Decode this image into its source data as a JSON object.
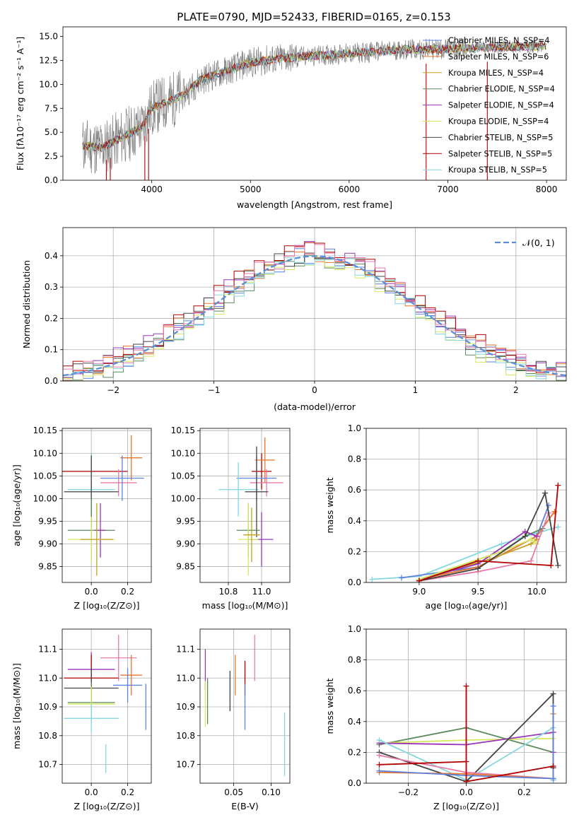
{
  "figure_title": "PLATE=0790, MJD=52433, FIBERID=0165, z=0.153",
  "model_labels": [
    "Chabrier MILES",
    "Salpeter MILES",
    "Kroupa MILES",
    "Chabrier ELODIE",
    "Salpeter ELODIE",
    "Kroupa ELODIE",
    "Chabrier STELIB",
    "Salpeter STELIB",
    "Kroupa STELIB"
  ],
  "chart_data": [
    {
      "id": "spectrum",
      "type": "line",
      "title": "PLATE=0790, MJD=52433, FIBERID=0165, z=0.153",
      "xlabel": "wavelength [Angstrom, rest frame]",
      "ylabel": "Flux [fλ10⁻¹⁷ erg cm⁻² s⁻¹ A⁻¹]",
      "xlim": [
        3100,
        8200
      ],
      "ylim": [
        0,
        16
      ],
      "xticks": [
        "4000",
        "5000",
        "6000",
        "7000",
        "8000"
      ],
      "yticks": [
        "0.0",
        "2.5",
        "5.0",
        "7.5",
        "10.0",
        "12.5",
        "15.0"
      ],
      "legend_position": "right",
      "continuum": {
        "x": [
          3300,
          3500,
          3700,
          3900,
          4000,
          4300,
          4500,
          5000,
          5500,
          6000,
          6500,
          7000,
          7500,
          8000
        ],
        "y": [
          3.6,
          3.4,
          4.5,
          5.5,
          7.5,
          8.8,
          10.5,
          12.3,
          12.9,
          13.2,
          13.6,
          13.7,
          13.9,
          14.0
        ]
      },
      "series": [
        {
          "name": "Chabrier MILES, N_SSP=4",
          "color": "#5b82e0"
        },
        {
          "name": "Salpeter MILES, N_SSP=6",
          "color": "#e8762b"
        },
        {
          "name": "Kroupa MILES, N_SSP=4",
          "color": "#c8a01e"
        },
        {
          "name": "Chabrier ELODIE, N_SSP=4",
          "color": "#5a8a5a"
        },
        {
          "name": "Salpeter ELODIE, N_SSP=4",
          "color": "#9a35b5"
        },
        {
          "name": "Kroupa ELODIE, N_SSP=4",
          "color": "#d8e860"
        },
        {
          "name": "Chabrier STELIB, N_SSP=5",
          "color": "#444444"
        },
        {
          "name": "Salpeter STELIB, N_SSP=5",
          "color": "#b00000"
        },
        {
          "name": "Kroupa STELIB, N_SSP=5",
          "color": "#85d8e0"
        }
      ]
    },
    {
      "id": "residuals",
      "type": "step",
      "xlabel": "(data-model)/error",
      "ylabel": "Normed distribution",
      "xlim": [
        -2.5,
        2.5
      ],
      "ylim": [
        0,
        0.49
      ],
      "xticks": [
        "−2",
        "−1",
        "0",
        "1",
        "2"
      ],
      "yticks": [
        "0.0",
        "0.1",
        "0.2",
        "0.3",
        "0.4"
      ],
      "gaussian_label": "𝒩(0, 1)",
      "gaussian_color": "#5b8fd8",
      "bin_width": 0.1,
      "series": [
        {
          "name": "Chabrier MILES",
          "color": "#5b82e0",
          "offset": 0.0
        },
        {
          "name": "Salpeter MILES",
          "color": "#e8762b",
          "offset": 0.012
        },
        {
          "name": "Chabrier ELODIE",
          "color": "#5a8a5a",
          "offset": -0.01
        },
        {
          "name": "Salpeter ELODIE",
          "color": "#9a35b5",
          "offset": 0.018
        },
        {
          "name": "Kroupa ELODIE",
          "color": "#d8e860",
          "offset": -0.015
        },
        {
          "name": "Chabrier STELIB",
          "color": "#444444",
          "offset": 0.006
        },
        {
          "name": "Salpeter STELIB",
          "color": "#b00000",
          "offset": 0.022
        },
        {
          "name": "Kroupa STELIB",
          "color": "#85d8e0",
          "offset": -0.006
        },
        {
          "name": "Kroupa MILES",
          "color": "#e87aa8",
          "offset": 0.01
        }
      ]
    },
    {
      "id": "age-vs-Z",
      "type": "errorbar",
      "xlabel": "Z [log₁₀(Z/Z⊙)]",
      "ylabel": "age  [log₁₀(age/yr)]",
      "xlim": [
        -0.16,
        0.33
      ],
      "ylim": [
        9.815,
        10.155
      ],
      "xticks": [
        "0.0",
        "0.2"
      ],
      "yticks": [
        "9.85",
        "9.90",
        "9.95",
        "10.00",
        "10.05",
        "10.10",
        "10.15"
      ],
      "points": [
        {
          "x": 0.0,
          "y": 10.06,
          "xerr": 0.2,
          "yerr": 0.04,
          "color": "#b00000"
        },
        {
          "x": 0.22,
          "y": 10.09,
          "xerr": 0.06,
          "yerr": 0.05,
          "color": "#e8762b"
        },
        {
          "x": 0.15,
          "y": 10.035,
          "xerr": 0.1,
          "yerr": 0.03,
          "color": "#e87aa8"
        },
        {
          "x": 0.17,
          "y": 10.045,
          "xerr": 0.12,
          "yerr": 0.05,
          "color": "#5b82e0"
        },
        {
          "x": 0.0,
          "y": 10.02,
          "xerr": 0.13,
          "yerr": 0.08,
          "color": "#85d8e0"
        },
        {
          "x": 0.0,
          "y": 10.015,
          "xerr": 0.15,
          "yerr": 0.08,
          "color": "#444444"
        },
        {
          "x": 0.0,
          "y": 9.93,
          "xerr": 0.13,
          "yerr": 0.07,
          "color": "#5a8a5a"
        },
        {
          "x": 0.05,
          "y": 9.93,
          "xerr": 0.03,
          "yerr": 0.06,
          "color": "#9a35b5"
        },
        {
          "x": 0.0,
          "y": 9.91,
          "xerr": 0.13,
          "yerr": 0.05,
          "color": "#d8e860"
        },
        {
          "x": 0.03,
          "y": 9.91,
          "xerr": 0.09,
          "yerr": 0.08,
          "color": "#c8a01e"
        }
      ]
    },
    {
      "id": "age-vs-mass",
      "type": "errorbar",
      "xlabel": "mass [log₁₀(M/M⊙)]",
      "xlim": [
        10.63,
        11.17
      ],
      "ylim": [
        9.815,
        10.155
      ],
      "xticks": [
        "10.8",
        "11.0"
      ],
      "yticks": [
        "9.85",
        "9.90",
        "9.95",
        "10.00",
        "10.05",
        "10.10",
        "10.15"
      ],
      "points": [
        {
          "x": 11.0,
          "y": 10.06,
          "xerr": 0.06,
          "yerr": 0.04,
          "color": "#b00000"
        },
        {
          "x": 11.02,
          "y": 10.085,
          "xerr": 0.06,
          "yerr": 0.05,
          "color": "#e8762b"
        },
        {
          "x": 11.03,
          "y": 10.035,
          "xerr": 0.1,
          "yerr": 0.03,
          "color": "#e87aa8"
        },
        {
          "x": 10.97,
          "y": 10.045,
          "xerr": 0.12,
          "yerr": 0.05,
          "color": "#5b82e0"
        },
        {
          "x": 10.86,
          "y": 10.02,
          "xerr": 0.12,
          "yerr": 0.06,
          "color": "#85d8e0"
        },
        {
          "x": 10.97,
          "y": 10.015,
          "xerr": 0.07,
          "yerr": 0.1,
          "color": "#444444"
        },
        {
          "x": 10.92,
          "y": 9.93,
          "xerr": 0.07,
          "yerr": 0.06,
          "color": "#5a8a5a"
        },
        {
          "x": 11.0,
          "y": 9.91,
          "xerr": 0.07,
          "yerr": 0.06,
          "color": "#9a35b5"
        },
        {
          "x": 10.92,
          "y": 9.91,
          "xerr": 0.06,
          "yerr": 0.08,
          "color": "#d8e860"
        },
        {
          "x": 10.94,
          "y": 9.92,
          "xerr": 0.05,
          "yerr": 0.06,
          "color": "#c8a01e"
        }
      ]
    },
    {
      "id": "weight-vs-age",
      "type": "line",
      "xlabel": "age  [log₁₀(age/yr)]",
      "ylabel": "mass weight",
      "xlim": [
        8.55,
        10.25
      ],
      "ylim": [
        0,
        1
      ],
      "xticks": [
        "9.0",
        "9.5",
        "10.0"
      ],
      "yticks": [
        "0.0",
        "0.2",
        "0.4",
        "0.6",
        "0.8",
        "1.0"
      ],
      "series": [
        {
          "name": "Kroupa STELIB",
          "color": "#85d8e0",
          "x": [
            8.6,
            9.0,
            9.7,
            10.0,
            10.18
          ],
          "y": [
            0.02,
            0.04,
            0.25,
            0.32,
            0.36
          ]
        },
        {
          "name": "Chabrier MILES",
          "color": "#5b82e0",
          "x": [
            8.85,
            9.5,
            10.0,
            10.1
          ],
          "y": [
            0.03,
            0.1,
            0.3,
            0.5
          ]
        },
        {
          "name": "Salpeter MILES",
          "color": "#e8762b",
          "x": [
            9.0,
            9.5,
            10.0,
            10.15
          ],
          "y": [
            0.02,
            0.1,
            0.3,
            0.46
          ]
        },
        {
          "name": "Kroupa MILES",
          "color": "#c8a01e",
          "x": [
            9.0,
            9.6,
            9.95,
            10.0
          ],
          "y": [
            0.02,
            0.15,
            0.25,
            0.28
          ]
        },
        {
          "name": "Chabrier ELODIE",
          "color": "#5a8a5a",
          "x": [
            9.0,
            9.7,
            9.9,
            10.05
          ],
          "y": [
            0.02,
            0.2,
            0.3,
            0.35
          ]
        },
        {
          "name": "Salpeter ELODIE",
          "color": "#9a35b5",
          "x": [
            9.0,
            9.5,
            9.9,
            10.0
          ],
          "y": [
            0.02,
            0.12,
            0.33,
            0.3
          ]
        },
        {
          "name": "Kroupa ELODIE",
          "color": "#d8e860",
          "x": [
            9.0,
            9.7,
            9.95,
            10.0
          ],
          "y": [
            0.02,
            0.2,
            0.28,
            0.25
          ]
        },
        {
          "name": "Kroupa MILES",
          "color": "#e87aa8",
          "x": [
            9.0,
            9.5,
            9.95,
            10.1
          ],
          "y": [
            0.01,
            0.07,
            0.14,
            0.45
          ]
        },
        {
          "name": "Chabrier STELIB",
          "color": "#444444",
          "x": [
            9.0,
            9.5,
            9.9,
            10.07,
            10.18
          ],
          "y": [
            0.01,
            0.09,
            0.3,
            0.58,
            0.11
          ]
        },
        {
          "name": "Salpeter STELIB",
          "color": "#b00000",
          "x": [
            9.0,
            9.5,
            10.12,
            10.18
          ],
          "y": [
            0.01,
            0.14,
            0.11,
            0.63
          ]
        }
      ]
    },
    {
      "id": "mass-vs-Z",
      "type": "errorbar",
      "xlabel": "Z [log₁₀(Z/Z⊙)]",
      "ylabel": "mass [log₁₀(M/M⊙)]",
      "xlim": [
        -0.16,
        0.33
      ],
      "ylim": [
        10.635,
        11.17
      ],
      "xticks": [
        "0.0",
        "0.2"
      ],
      "yticks": [
        "10.7",
        "10.8",
        "10.9",
        "11.0",
        "11.1"
      ],
      "points": [
        {
          "x": 0.0,
          "y": 11.03,
          "xerr": 0.13,
          "yerr": 0.06,
          "color": "#9a35b5"
        },
        {
          "x": 0.15,
          "y": 11.07,
          "xerr": 0.1,
          "yerr": 0.08,
          "color": "#e87aa8"
        },
        {
          "x": 0.22,
          "y": 11.01,
          "xerr": 0.06,
          "yerr": 0.07,
          "color": "#e8762b"
        },
        {
          "x": 0.2,
          "y": 10.975,
          "xerr": 0.08,
          "yerr": 0.06,
          "color": "#5b82e0"
        },
        {
          "x": 0.0,
          "y": 11.0,
          "xerr": 0.15,
          "yerr": 0.08,
          "color": "#b00000"
        },
        {
          "x": 0.0,
          "y": 10.965,
          "xerr": 0.15,
          "yerr": 0.07,
          "color": "#444444"
        },
        {
          "x": 0.0,
          "y": 10.915,
          "xerr": 0.13,
          "yerr": 0.07,
          "color": "#5a8a5a"
        },
        {
          "x": 0.0,
          "y": 10.91,
          "xerr": 0.13,
          "yerr": 0.06,
          "color": "#d8e860"
        },
        {
          "x": 0.0,
          "y": 10.86,
          "xerr": 0.15,
          "yerr": 0.05,
          "color": "#85d8e0"
        },
        {
          "x": 0.3,
          "y": 10.9,
          "xerr": 0.0,
          "yerr": 0.08,
          "color": "#5b82e0"
        },
        {
          "x": 0.08,
          "y": 10.72,
          "xerr": 0.0,
          "yerr": 0.05,
          "color": "#85d8e0"
        }
      ]
    },
    {
      "id": "mass-vs-ebv",
      "type": "errorbar",
      "xlabel": "E(B-V)",
      "xlim": [
        0.005,
        0.125
      ],
      "ylim": [
        10.635,
        11.17
      ],
      "xticks": [
        "0.05",
        "0.10"
      ],
      "yticks": [
        "10.7",
        "10.8",
        "10.9",
        "11.0",
        "11.1"
      ],
      "points": [
        {
          "x": 0.012,
          "y": 11.03,
          "xerr": 0,
          "yerr": 0.07,
          "color": "#9a35b5"
        },
        {
          "x": 0.012,
          "y": 10.91,
          "xerr": 0,
          "yerr": 0.08,
          "color": "#d8e860"
        },
        {
          "x": 0.015,
          "y": 10.92,
          "xerr": 0,
          "yerr": 0.08,
          "color": "#5a8a5a"
        },
        {
          "x": 0.045,
          "y": 10.955,
          "xerr": 0,
          "yerr": 0.07,
          "color": "#444444"
        },
        {
          "x": 0.052,
          "y": 11.01,
          "xerr": 0,
          "yerr": 0.07,
          "color": "#e8762b"
        },
        {
          "x": 0.065,
          "y": 11.0,
          "xerr": 0,
          "yerr": 0.06,
          "color": "#b00000"
        },
        {
          "x": 0.065,
          "y": 10.9,
          "xerr": 0,
          "yerr": 0.08,
          "color": "#5b82e0"
        },
        {
          "x": 0.078,
          "y": 11.07,
          "xerr": 0,
          "yerr": 0.08,
          "color": "#e87aa8"
        },
        {
          "x": 0.118,
          "y": 10.77,
          "xerr": 0,
          "yerr": 0.11,
          "color": "#85d8e0"
        }
      ]
    },
    {
      "id": "weight-vs-Z",
      "type": "line",
      "xlabel": "Z [log₁₀(Z/Z⊙)]",
      "ylabel": "mass weight",
      "xlim": [
        -0.345,
        0.345
      ],
      "ylim": [
        0,
        1
      ],
      "xticks": [
        "−0.2",
        "0.0",
        "0.2"
      ],
      "yticks": [
        "0.0",
        "0.2",
        "0.4",
        "0.6",
        "0.8",
        "1.0"
      ],
      "series": [
        {
          "name": "Chabrier ELODIE",
          "color": "#5a8a5a",
          "x": [
            -0.3,
            0.0,
            0.3,
            0.3
          ],
          "y": [
            0.25,
            0.36,
            0.2,
            0.02
          ]
        },
        {
          "name": "Kroupa ELODIE",
          "color": "#d8e860",
          "x": [
            -0.3,
            0.0,
            0.3
          ],
          "y": [
            0.26,
            0.28,
            0.29
          ]
        },
        {
          "name": "Salpeter ELODIE",
          "color": "#9a35b5",
          "x": [
            -0.3,
            0.0,
            0.3,
            0.3
          ],
          "y": [
            0.26,
            0.25,
            0.33,
            0.2
          ]
        },
        {
          "name": "Kroupa STELIB",
          "color": "#85d8e0",
          "x": [
            -0.3,
            0.0,
            0.3,
            0.3
          ],
          "y": [
            0.28,
            0.02,
            0.36,
            0.02
          ]
        },
        {
          "name": "Chabrier STELIB",
          "color": "#444444",
          "x": [
            -0.3,
            0.0,
            0.3,
            0.3
          ],
          "y": [
            0.2,
            0.01,
            0.58,
            0.1
          ]
        },
        {
          "name": "Kroupa MILES",
          "color": "#e87aa8",
          "x": [
            -0.3,
            0.0,
            0.3
          ],
          "y": [
            0.18,
            0.07,
            0.03
          ]
        },
        {
          "name": "Salpeter MILES",
          "color": "#e8762b",
          "x": [
            -0.3,
            0.0,
            0.3,
            0.3
          ],
          "y": [
            0.07,
            0.06,
            0.03,
            0.45
          ]
        },
        {
          "name": "Chabrier MILES",
          "color": "#5b82e0",
          "x": [
            -0.3,
            0.0,
            0.3,
            0.3
          ],
          "y": [
            0.08,
            0.05,
            0.03,
            0.5
          ]
        },
        {
          "name": "Salpeter STELIB",
          "color": "#b00000",
          "x": [
            -0.3,
            0.0,
            0.0,
            0.0,
            0.3
          ],
          "y": [
            0.12,
            0.14,
            0.63,
            0.01,
            0.11
          ]
        }
      ]
    }
  ]
}
